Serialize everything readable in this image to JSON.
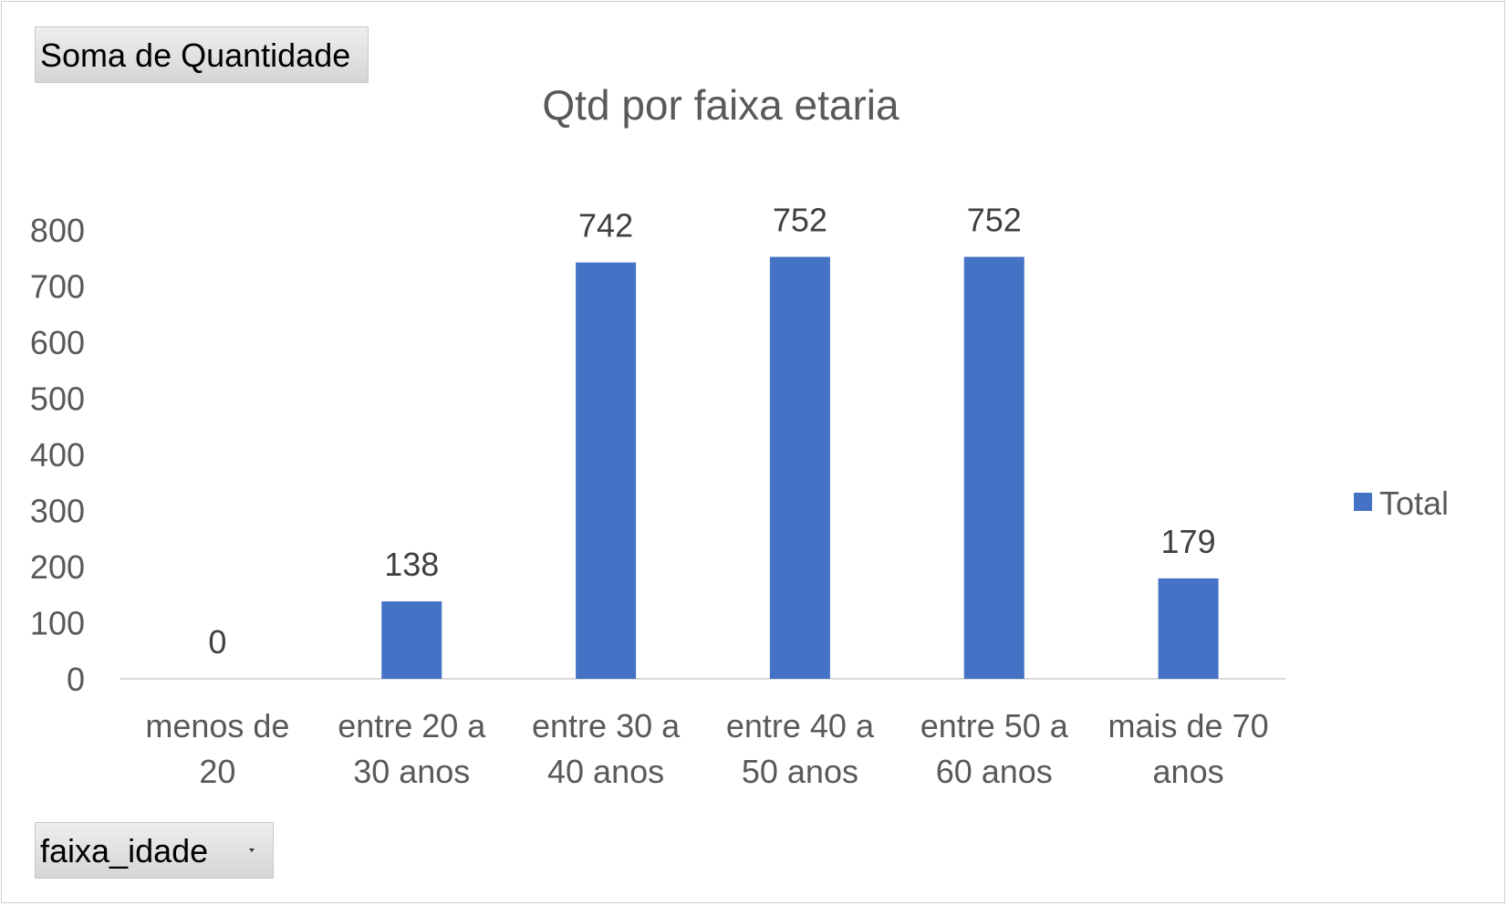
{
  "pivot_fields": {
    "value_field": "Soma de Quantidade",
    "axis_field": "faixa_idade"
  },
  "colors": {
    "bar": "#4472C4",
    "text": "#595959",
    "data_label": "#404040",
    "axis_line": "#d9d9d9"
  },
  "chart_data": {
    "type": "bar",
    "title": "Qtd por faixa etaria",
    "xlabel": "",
    "ylabel": "",
    "categories": [
      [
        "menos de",
        "20"
      ],
      [
        "entre 20 a",
        "30 anos"
      ],
      [
        "entre 30 a",
        "40 anos"
      ],
      [
        "entre 40 a",
        "50 anos"
      ],
      [
        "entre 50 a",
        "60 anos"
      ],
      [
        "mais de 70",
        "anos"
      ]
    ],
    "series": [
      {
        "name": "Total",
        "values": [
          0,
          138,
          742,
          752,
          752,
          179
        ]
      }
    ],
    "data_labels": true,
    "ylim": [
      0,
      800
    ],
    "yticks": [
      0,
      100,
      200,
      300,
      400,
      500,
      600,
      700,
      800
    ],
    "grid": false,
    "legend": "right"
  }
}
